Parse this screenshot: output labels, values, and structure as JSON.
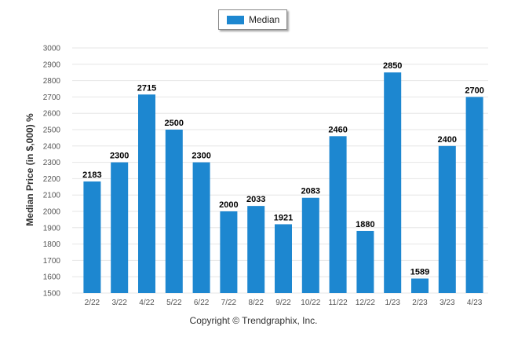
{
  "colors": {
    "bar": "#1d87d0",
    "grid": "#e6e6e6",
    "axis_text": "#555555",
    "label_text": "#000000"
  },
  "legend": {
    "label": "Median"
  },
  "copyright": "Copyright © Trendgraphix, Inc.",
  "chart_data": {
    "type": "bar",
    "categories": [
      "2/22",
      "3/22",
      "4/22",
      "5/22",
      "6/22",
      "7/22",
      "8/22",
      "9/22",
      "10/22",
      "11/22",
      "12/22",
      "1/23",
      "2/23",
      "3/23",
      "4/23"
    ],
    "series": [
      {
        "name": "Median",
        "values": [
          2183,
          2300,
          2715,
          2500,
          2300,
          2000,
          2033,
          1921,
          2083,
          2460,
          1880,
          2850,
          1589,
          2400,
          2700
        ]
      }
    ],
    "ylabel": "Median Price (in $,000) %",
    "xlabel": "",
    "ylim": [
      1500,
      3000
    ],
    "ytick_step": 100,
    "grid": true,
    "legend_position": "top-center",
    "data_labels": true
  }
}
